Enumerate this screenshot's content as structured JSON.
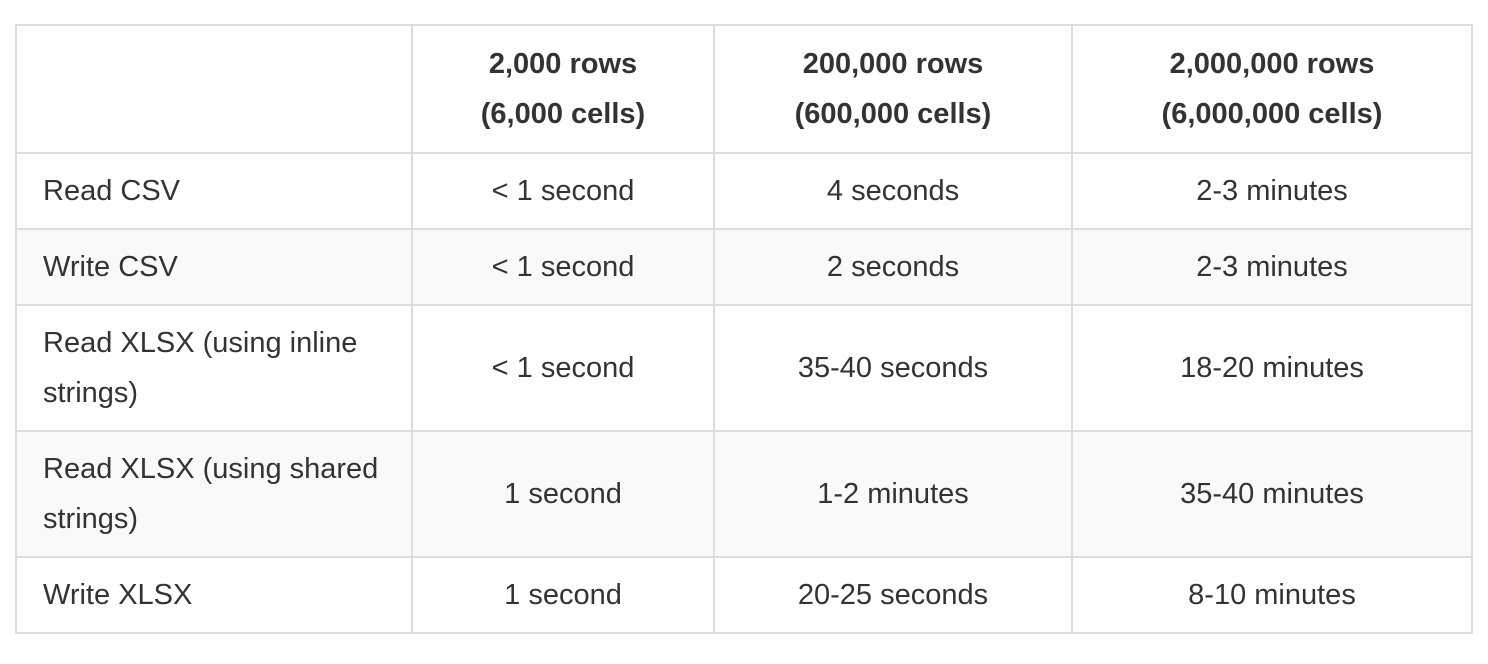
{
  "table": {
    "headers": [
      {
        "line1": "",
        "line2": ""
      },
      {
        "line1": "2,000 rows",
        "line2": "(6,000 cells)"
      },
      {
        "line1": "200,000 rows",
        "line2": "(600,000 cells)"
      },
      {
        "line1": "2,000,000 rows",
        "line2": "(6,000,000 cells)"
      }
    ],
    "rows": [
      {
        "label": "Read CSV",
        "values": [
          "< 1 second",
          "4 seconds",
          "2-3 minutes"
        ]
      },
      {
        "label": "Write CSV",
        "values": [
          "< 1 second",
          "2 seconds",
          "2-3 minutes"
        ]
      },
      {
        "label": "Read XLSX (using inline strings)",
        "values": [
          "< 1 second",
          "35-40 seconds",
          "18-20 minutes"
        ]
      },
      {
        "label": "Read XLSX (using shared strings)",
        "values": [
          "1 second",
          "1-2 minutes",
          "35-40 minutes"
        ]
      },
      {
        "label": "Write XLSX",
        "values": [
          "1 second",
          "20-25 seconds",
          "8-10 minutes"
        ]
      }
    ]
  }
}
